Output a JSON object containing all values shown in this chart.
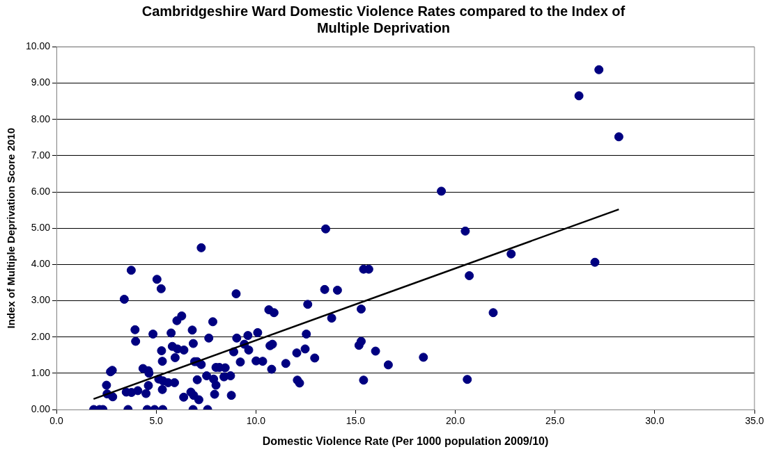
{
  "chart_data": {
    "type": "scatter",
    "title": "Cambridgeshire Ward Domestic Violence Rates compared to the Index of Multiple Deprivation",
    "xlabel": "Domestic Violence Rate (Per 1000 population 2009/10)",
    "ylabel": "Index of Multiple Deprivation Score 2010",
    "xlim": [
      0,
      35
    ],
    "ylim": [
      0,
      10
    ],
    "xticks": [
      {
        "value": 0,
        "label": "0.0"
      },
      {
        "value": 5,
        "label": "5.0"
      },
      {
        "value": 10,
        "label": "10.0"
      },
      {
        "value": 15,
        "label": "15.0"
      },
      {
        "value": 20,
        "label": "20.0"
      },
      {
        "value": 25,
        "label": "25.0"
      },
      {
        "value": 30,
        "label": "30.0"
      },
      {
        "value": 35,
        "label": "35.0"
      }
    ],
    "yticks": [
      {
        "value": 0,
        "label": "0.00"
      },
      {
        "value": 1,
        "label": "1.00"
      },
      {
        "value": 2,
        "label": "2.00"
      },
      {
        "value": 3,
        "label": "3.00"
      },
      {
        "value": 4,
        "label": "4.00"
      },
      {
        "value": 5,
        "label": "5.00"
      },
      {
        "value": 6,
        "label": "6.00"
      },
      {
        "value": 7,
        "label": "7.00"
      },
      {
        "value": 8,
        "label": "8.00"
      },
      {
        "value": 9,
        "label": "9.00"
      },
      {
        "value": 10,
        "label": "10.00"
      }
    ],
    "grid": "y",
    "marker": "circle",
    "legend": false,
    "series": [
      {
        "color": "#000080",
        "x": [
          27.2,
          26.2,
          28.2,
          19.3,
          20.5,
          22.8,
          27.0,
          20.7,
          21.9,
          20.6,
          18.4,
          13.5,
          15.4,
          15.66,
          13.45,
          14.09,
          12.6,
          15.28,
          13.8,
          12.53,
          15.28,
          15.17,
          12.47,
          12.05,
          16.0,
          12.95,
          11.5,
          16.64,
          12.08,
          12.19,
          15.4,
          7.26,
          3.75,
          5.04,
          5.25,
          3.4,
          9.01,
          6.28,
          6.04,
          3.94,
          4.84,
          5.75,
          6.81,
          7.84,
          3.97,
          6.86,
          7.64,
          9.04,
          9.6,
          10.09,
          10.65,
          10.91,
          5.81,
          6.07,
          6.39,
          5.95,
          5.27,
          5.31,
          9.42,
          9.64,
          10.71,
          10.83,
          8.89,
          9.22,
          10.01,
          10.34,
          10.79,
          6.93,
          7.05,
          7.26,
          8.0,
          8.17,
          8.46,
          8.4,
          8.73,
          7.53,
          7.88,
          8.0,
          7.93,
          8.77,
          7.06,
          2.71,
          2.8,
          2.51,
          2.54,
          2.82,
          3.5,
          3.76,
          4.08,
          4.49,
          4.34,
          4.61,
          4.64,
          4.61,
          5.13,
          5.34,
          5.31,
          5.6,
          5.92,
          6.38,
          6.74,
          6.88,
          7.14,
          1.87,
          2.16,
          2.33,
          3.59,
          4.55,
          4.92,
          5.33,
          6.85,
          7.58
        ],
        "values": [
          9.37,
          8.65,
          7.52,
          6.02,
          4.92,
          4.29,
          4.06,
          3.69,
          2.67,
          0.83,
          1.44,
          4.98,
          3.87,
          3.87,
          3.31,
          3.29,
          2.9,
          2.77,
          2.52,
          2.08,
          1.88,
          1.77,
          1.67,
          1.56,
          1.61,
          1.42,
          1.27,
          1.23,
          0.81,
          0.73,
          0.81,
          4.46,
          3.84,
          3.59,
          3.33,
          3.04,
          3.19,
          2.58,
          2.45,
          2.2,
          2.08,
          2.11,
          2.19,
          2.42,
          1.88,
          1.82,
          1.97,
          1.97,
          2.04,
          2.12,
          2.75,
          2.67,
          1.74,
          1.67,
          1.64,
          1.43,
          1.62,
          1.33,
          1.8,
          1.64,
          1.76,
          1.8,
          1.59,
          1.31,
          1.34,
          1.33,
          1.11,
          1.32,
          1.32,
          1.24,
          1.16,
          1.16,
          1.15,
          0.9,
          0.93,
          0.93,
          0.84,
          0.67,
          0.42,
          0.39,
          0.82,
          1.04,
          1.08,
          0.67,
          0.43,
          0.35,
          0.48,
          0.47,
          0.52,
          0.44,
          1.13,
          1.07,
          1.0,
          0.66,
          0.84,
          0.79,
          0.55,
          0.74,
          0.74,
          0.34,
          0.48,
          0.39,
          0.27,
          0,
          0,
          0,
          0,
          0,
          0,
          0,
          0,
          0
        ]
      },
      {
        "type": "line",
        "color": "#000000",
        "marker": "none",
        "x": [
          1.86,
          28.2
        ],
        "values": [
          0.29,
          5.52
        ]
      }
    ]
  }
}
